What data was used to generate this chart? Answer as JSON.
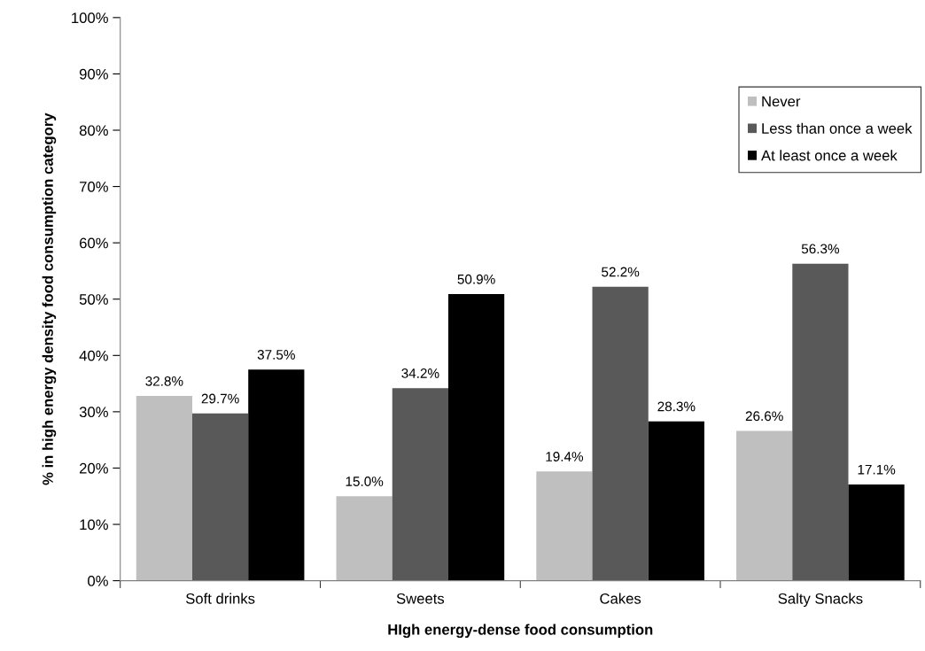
{
  "chart_data": {
    "type": "bar",
    "xlabel": "HIgh energy-dense food consumption",
    "ylabel": "% in high energy density food consumption category",
    "categories": [
      "Soft drinks",
      "Sweets",
      "Cakes",
      "Salty Snacks"
    ],
    "series": [
      {
        "name": "Never",
        "color": "#bfbfbf",
        "values": [
          32.8,
          15.0,
          19.4,
          26.6
        ],
        "value_labels": [
          "32.8%",
          "15.0%",
          "19.4%",
          "26.6%"
        ]
      },
      {
        "name": "Less than once a week",
        "color": "#595959",
        "values": [
          29.7,
          34.2,
          52.2,
          56.3
        ],
        "value_labels": [
          "29.7%",
          "34.2%",
          "52.2%",
          "56.3%"
        ]
      },
      {
        "name": "At least once a week",
        "color": "#000000",
        "values": [
          37.5,
          50.9,
          28.3,
          17.1
        ],
        "value_labels": [
          "37.5%",
          "50.9%",
          "28.3%",
          "17.1%"
        ]
      }
    ],
    "ylim": [
      0,
      100
    ],
    "yticks": [
      {
        "value": 0,
        "label": "0%"
      },
      {
        "value": 10,
        "label": "10%"
      },
      {
        "value": 20,
        "label": "20%"
      },
      {
        "value": 30,
        "label": "30%"
      },
      {
        "value": 40,
        "label": "40%"
      },
      {
        "value": 50,
        "label": "50%"
      },
      {
        "value": 60,
        "label": "60%"
      },
      {
        "value": 70,
        "label": "70%"
      },
      {
        "value": 80,
        "label": "80%"
      },
      {
        "value": 90,
        "label": "90%"
      },
      {
        "value": 100,
        "label": "100%"
      }
    ],
    "grid": false,
    "legend": "top right"
  }
}
